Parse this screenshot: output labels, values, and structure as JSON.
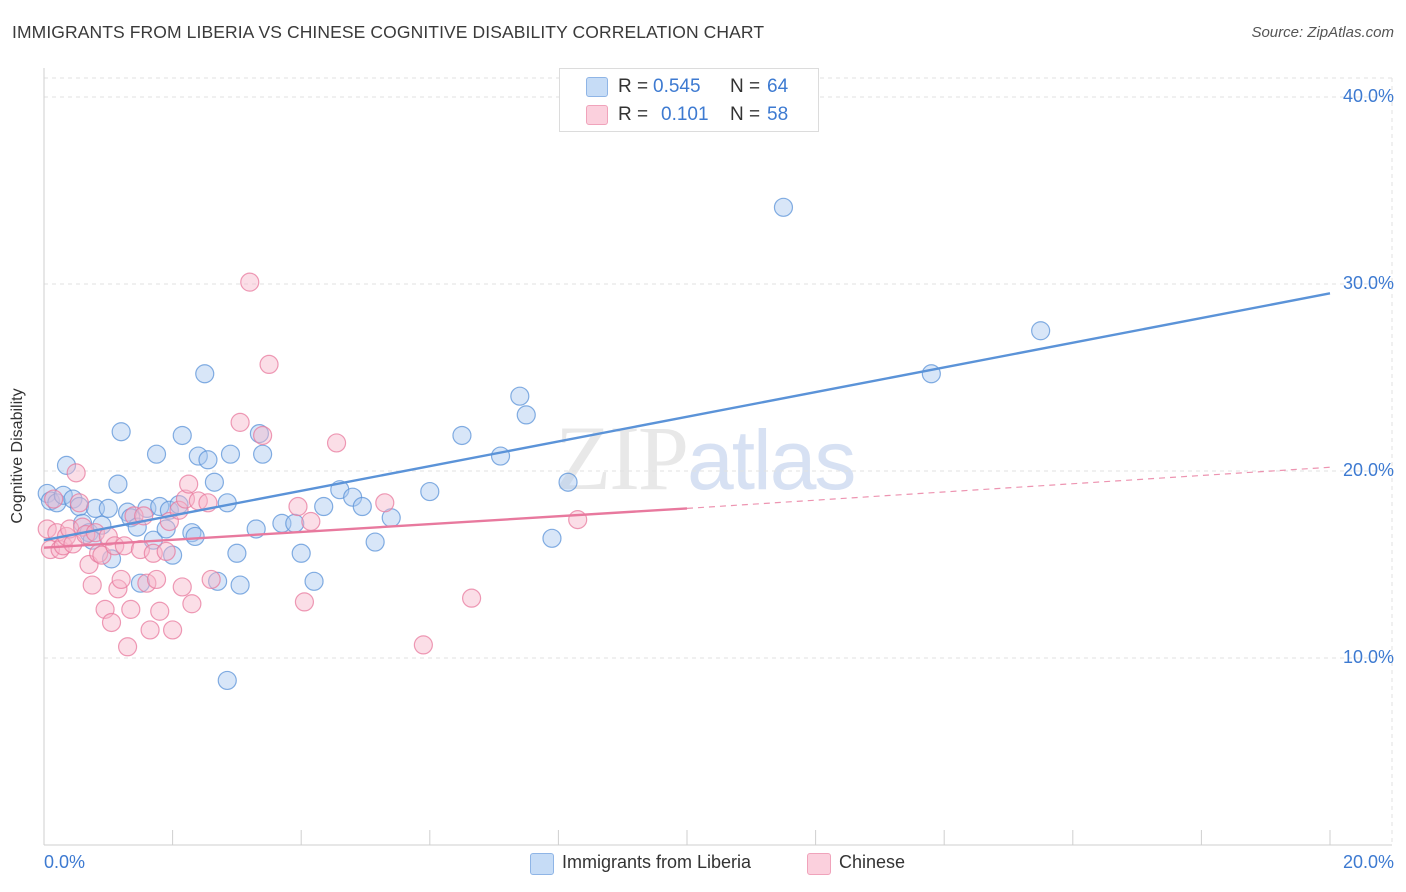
{
  "title": "IMMIGRANTS FROM LIBERIA VS CHINESE COGNITIVE DISABILITY CORRELATION CHART",
  "source": "Source: ZipAtlas.com",
  "watermark": {
    "zip": "ZIP",
    "atlas": "atlas"
  },
  "stats": [
    {
      "r_label": "R =",
      "r_value": "0.545",
      "n_label": "N =",
      "n_value": "64",
      "color": "#a8c8f0"
    },
    {
      "r_label": "R =",
      "r_value": "0.101",
      "n_label": "N =",
      "n_value": "58",
      "color": "#f7b6c9"
    }
  ],
  "legend": [
    {
      "label": "Immigrants from Liberia",
      "color": "#a8c8f0"
    },
    {
      "label": "Chinese",
      "color": "#f7b6c9"
    }
  ],
  "chart_data": {
    "type": "scatter",
    "title": "IMMIGRANTS FROM LIBERIA VS CHINESE COGNITIVE DISABILITY CORRELATION CHART",
    "xlabel": "",
    "ylabel": "Cognitive Disability",
    "xlim": [
      0,
      20
    ],
    "ylim": [
      0,
      40
    ],
    "x_tick_labels": [
      "0.0%",
      "20.0%"
    ],
    "y_ticks": [
      10,
      20,
      30,
      40
    ],
    "y_tick_labels": [
      "10.0%",
      "20.0%",
      "30.0%",
      "40.0%"
    ],
    "grid": true,
    "legend_position": "bottom",
    "series": [
      {
        "name": "Immigrants from Liberia",
        "color": "#5b93d8",
        "fill": "#a8c8f0",
        "trend": {
          "x": [
            0,
            20
          ],
          "y": [
            16.3,
            29.5
          ],
          "style": "solid"
        },
        "points": [
          [
            0.05,
            18.8
          ],
          [
            0.1,
            18.4
          ],
          [
            0.2,
            18.3
          ],
          [
            0.3,
            18.7
          ],
          [
            0.35,
            20.3
          ],
          [
            0.45,
            18.5
          ],
          [
            0.55,
            18.1
          ],
          [
            0.6,
            17.2
          ],
          [
            0.7,
            16.7
          ],
          [
            0.75,
            16.3
          ],
          [
            0.8,
            18.0
          ],
          [
            0.9,
            17.1
          ],
          [
            1.0,
            18.0
          ],
          [
            1.05,
            15.3
          ],
          [
            1.15,
            19.3
          ],
          [
            1.2,
            22.1
          ],
          [
            1.3,
            17.8
          ],
          [
            1.35,
            17.5
          ],
          [
            1.45,
            17.0
          ],
          [
            1.5,
            14.0
          ],
          [
            1.6,
            18.0
          ],
          [
            1.7,
            16.3
          ],
          [
            1.75,
            20.9
          ],
          [
            1.8,
            18.1
          ],
          [
            1.9,
            16.9
          ],
          [
            1.95,
            17.9
          ],
          [
            2.0,
            15.5
          ],
          [
            2.1,
            18.2
          ],
          [
            2.15,
            21.9
          ],
          [
            2.3,
            16.7
          ],
          [
            2.35,
            16.5
          ],
          [
            2.4,
            20.8
          ],
          [
            2.5,
            25.2
          ],
          [
            2.55,
            20.6
          ],
          [
            2.65,
            19.4
          ],
          [
            2.7,
            14.1
          ],
          [
            2.85,
            18.3
          ],
          [
            2.9,
            20.9
          ],
          [
            3.0,
            15.6
          ],
          [
            3.05,
            13.9
          ],
          [
            3.3,
            16.9
          ],
          [
            3.35,
            22.0
          ],
          [
            3.4,
            20.9
          ],
          [
            3.7,
            17.2
          ],
          [
            3.9,
            17.2
          ],
          [
            4.0,
            15.6
          ],
          [
            4.2,
            14.1
          ],
          [
            4.35,
            18.1
          ],
          [
            4.6,
            19.0
          ],
          [
            4.8,
            18.6
          ],
          [
            4.95,
            18.1
          ],
          [
            5.15,
            16.2
          ],
          [
            5.4,
            17.5
          ],
          [
            6.0,
            18.9
          ],
          [
            6.5,
            21.9
          ],
          [
            7.1,
            20.8
          ],
          [
            7.4,
            24.0
          ],
          [
            7.5,
            23.0
          ],
          [
            7.9,
            16.4
          ],
          [
            8.15,
            19.4
          ],
          [
            11.5,
            34.1
          ],
          [
            13.8,
            25.2
          ],
          [
            15.5,
            27.5
          ],
          [
            2.85,
            8.8
          ]
        ]
      },
      {
        "name": "Chinese",
        "color": "#e8799e",
        "fill": "#f7b6c9",
        "trend": {
          "x": [
            0,
            10
          ],
          "y": [
            15.9,
            18.0
          ],
          "style": "solid",
          "extension": {
            "x": [
              10,
              20
            ],
            "y": [
              18.0,
              20.2
            ],
            "style": "dashed"
          }
        },
        "points": [
          [
            0.05,
            16.9
          ],
          [
            0.1,
            15.8
          ],
          [
            0.15,
            18.5
          ],
          [
            0.2,
            16.7
          ],
          [
            0.25,
            15.8
          ],
          [
            0.3,
            16.0
          ],
          [
            0.35,
            16.5
          ],
          [
            0.4,
            16.9
          ],
          [
            0.45,
            16.1
          ],
          [
            0.5,
            19.9
          ],
          [
            0.55,
            18.3
          ],
          [
            0.6,
            17.0
          ],
          [
            0.65,
            16.6
          ],
          [
            0.7,
            15.0
          ],
          [
            0.75,
            13.9
          ],
          [
            0.8,
            16.7
          ],
          [
            0.85,
            15.6
          ],
          [
            0.9,
            15.5
          ],
          [
            0.95,
            12.6
          ],
          [
            1.0,
            16.5
          ],
          [
            1.05,
            11.9
          ],
          [
            1.1,
            16.0
          ],
          [
            1.15,
            13.7
          ],
          [
            1.2,
            14.2
          ],
          [
            1.25,
            16.0
          ],
          [
            1.3,
            10.6
          ],
          [
            1.35,
            12.6
          ],
          [
            1.4,
            17.6
          ],
          [
            1.5,
            15.8
          ],
          [
            1.55,
            17.6
          ],
          [
            1.6,
            14.0
          ],
          [
            1.65,
            11.5
          ],
          [
            1.7,
            15.6
          ],
          [
            1.75,
            14.2
          ],
          [
            1.8,
            12.5
          ],
          [
            1.9,
            15.7
          ],
          [
            1.95,
            17.3
          ],
          [
            2.0,
            11.5
          ],
          [
            2.1,
            17.9
          ],
          [
            2.15,
            13.8
          ],
          [
            2.2,
            18.5
          ],
          [
            2.25,
            19.3
          ],
          [
            2.3,
            12.9
          ],
          [
            2.4,
            18.4
          ],
          [
            2.55,
            18.3
          ],
          [
            2.6,
            14.2
          ],
          [
            3.05,
            22.6
          ],
          [
            3.2,
            30.1
          ],
          [
            3.4,
            21.9
          ],
          [
            3.5,
            25.7
          ],
          [
            3.95,
            18.1
          ],
          [
            4.05,
            13.0
          ],
          [
            4.15,
            17.3
          ],
          [
            4.55,
            21.5
          ],
          [
            5.3,
            18.3
          ],
          [
            5.9,
            10.7
          ],
          [
            6.65,
            13.2
          ],
          [
            8.3,
            17.4
          ]
        ]
      }
    ]
  }
}
